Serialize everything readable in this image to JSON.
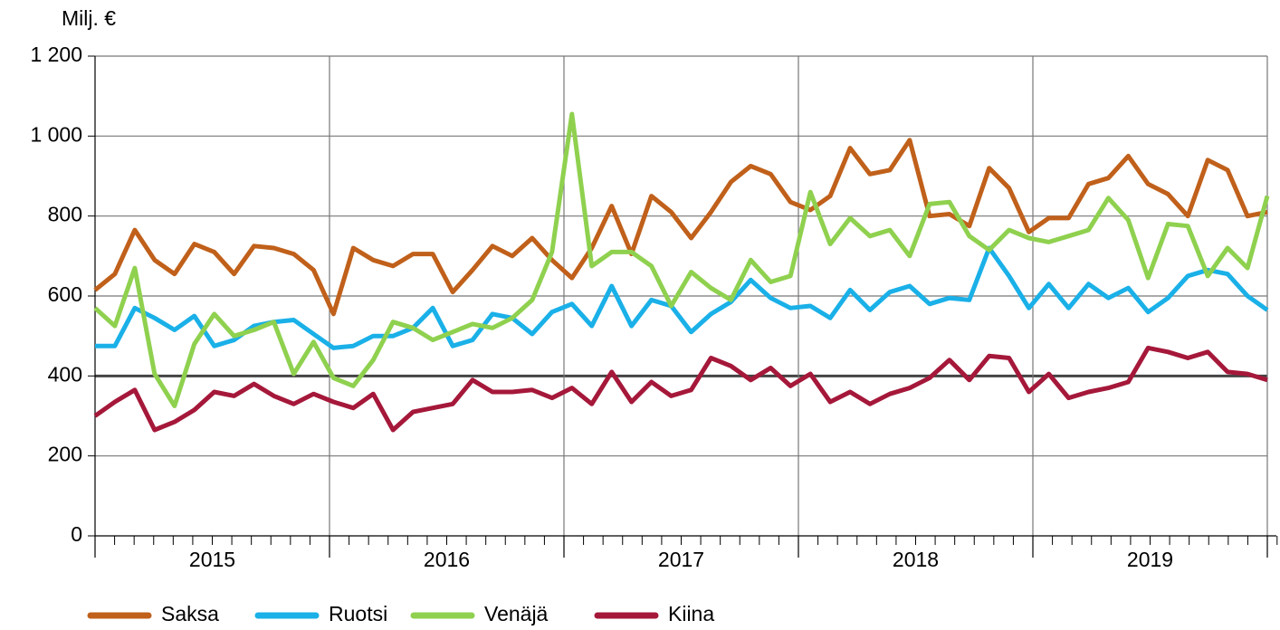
{
  "chart_data": {
    "type": "line",
    "y_axis_label": "Milj. €",
    "categories": [
      null,
      null,
      null,
      null,
      null,
      null,
      null,
      null,
      null,
      null,
      null,
      null,
      null,
      null,
      null,
      null,
      null,
      null,
      null,
      null,
      null,
      null,
      null,
      null,
      null,
      null,
      null,
      null,
      null,
      null,
      null,
      null,
      null,
      null,
      null,
      null,
      null,
      null,
      null,
      null,
      null,
      null,
      null,
      null,
      null,
      null,
      null,
      null,
      null,
      null,
      null,
      null,
      null,
      null,
      null,
      null,
      null,
      null,
      null,
      null
    ],
    "year_labels": [
      "2015",
      "2016",
      "2017",
      "2018",
      "2019"
    ],
    "ylim": [
      0,
      1200
    ],
    "yticks": [
      0,
      200,
      400,
      600,
      800,
      {
        "value": 1000,
        "label": "1 000"
      },
      {
        "value": 1200,
        "label": "1 200"
      }
    ],
    "grid": true,
    "legend": "bottom",
    "series": [
      {
        "name": "Saksa",
        "color": "#c0601a",
        "values": [
          615,
          655,
          765,
          690,
          655,
          730,
          710,
          655,
          725,
          720,
          705,
          665,
          555,
          720,
          690,
          675,
          705,
          705,
          610,
          665,
          725,
          700,
          745,
          690,
          645,
          720,
          825,
          705,
          850,
          810,
          745,
          810,
          885,
          925,
          905,
          835,
          815,
          850,
          970,
          905,
          915,
          990,
          800,
          805,
          775,
          920,
          870,
          760,
          795,
          795,
          880,
          895,
          950,
          880,
          855,
          800,
          940,
          915,
          800,
          810
        ]
      },
      {
        "name": "Ruotsi",
        "color": "#1ab0e8",
        "values": [
          475,
          475,
          570,
          545,
          515,
          550,
          475,
          490,
          525,
          535,
          540,
          505,
          470,
          475,
          500,
          500,
          520,
          570,
          475,
          490,
          555,
          545,
          505,
          560,
          580,
          525,
          625,
          525,
          590,
          575,
          510,
          555,
          585,
          640,
          595,
          570,
          575,
          545,
          615,
          565,
          610,
          625,
          580,
          595,
          590,
          720,
          650,
          570,
          630,
          570,
          630,
          595,
          620,
          560,
          595,
          650,
          665,
          655,
          600,
          565
        ]
      },
      {
        "name": "Venäjä",
        "color": "#8fd14f",
        "values": [
          570,
          525,
          670,
          405,
          325,
          480,
          555,
          500,
          515,
          535,
          405,
          485,
          395,
          375,
          440,
          535,
          520,
          490,
          510,
          530,
          520,
          545,
          590,
          710,
          1055,
          675,
          710,
          710,
          675,
          575,
          660,
          620,
          590,
          690,
          635,
          650,
          860,
          730,
          795,
          750,
          765,
          700,
          830,
          835,
          750,
          715,
          765,
          745,
          735,
          750,
          765,
          845,
          790,
          645,
          780,
          775,
          650,
          720,
          670,
          850
        ]
      },
      {
        "name": "Kiina",
        "color": "#a5183a",
        "values": [
          300,
          335,
          365,
          265,
          285,
          315,
          360,
          350,
          380,
          350,
          330,
          355,
          335,
          320,
          355,
          265,
          310,
          320,
          330,
          390,
          360,
          360,
          365,
          345,
          370,
          330,
          410,
          335,
          385,
          350,
          365,
          445,
          425,
          390,
          420,
          375,
          405,
          335,
          360,
          330,
          355,
          370,
          395,
          440,
          390,
          450,
          445,
          360,
          405,
          345,
          360,
          370,
          385,
          470,
          460,
          445,
          460,
          410,
          405,
          390
        ]
      }
    ]
  }
}
